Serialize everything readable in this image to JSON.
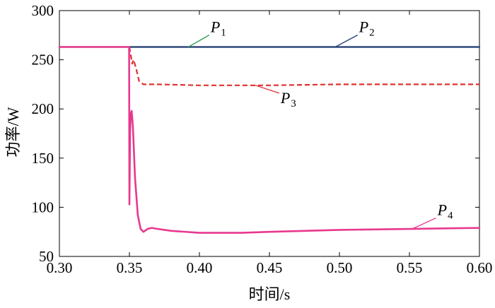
{
  "chart_data": {
    "type": "line",
    "title": "",
    "xlabel": "时间/s",
    "ylabel": "功率/W",
    "xlim": [
      0.3,
      0.6
    ],
    "ylim": [
      50,
      300
    ],
    "xticks": [
      "0.30",
      "0.35",
      "0.40",
      "0.45",
      "0.50",
      "0.55",
      "0.60"
    ],
    "yticks": [
      "50",
      "100",
      "150",
      "200",
      "250",
      "300"
    ],
    "grid": false,
    "legend": "inline annotations",
    "series": [
      {
        "name": "P1",
        "letter": "P",
        "subscript": "1",
        "color": "#2e9a4a",
        "dash": "solid",
        "x": [
          0.3,
          0.35,
          0.4,
          0.45,
          0.5,
          0.55,
          0.6
        ],
        "y": [
          263,
          263,
          263,
          263,
          263,
          263,
          263
        ]
      },
      {
        "name": "P2",
        "letter": "P",
        "subscript": "2",
        "color": "#2a3f7a",
        "dash": "solid",
        "x": [
          0.35,
          0.4,
          0.45,
          0.5,
          0.55,
          0.6
        ],
        "y": [
          263,
          263,
          263,
          263,
          263,
          263
        ]
      },
      {
        "name": "P3",
        "letter": "P",
        "subscript": "3",
        "color": "#e03030",
        "dash": "dashed",
        "x": [
          0.35,
          0.352,
          0.353,
          0.355,
          0.357,
          0.36,
          0.37,
          0.4,
          0.45,
          0.5,
          0.55,
          0.6
        ],
        "y": [
          263,
          246,
          250,
          240,
          228,
          225,
          225,
          224,
          224,
          225,
          225,
          225
        ]
      },
      {
        "name": "P4",
        "letter": "P",
        "subscript": "4",
        "color": "#e8388e",
        "dash": "solid",
        "x": [
          0.3,
          0.3498,
          0.35,
          0.3505,
          0.351,
          0.3516,
          0.3525,
          0.354,
          0.356,
          0.358,
          0.36,
          0.363,
          0.366,
          0.37,
          0.38,
          0.4,
          0.43,
          0.45,
          0.5,
          0.55,
          0.6
        ],
        "y": [
          263,
          263,
          103,
          178,
          195,
          198,
          182,
          130,
          92,
          78,
          75,
          78,
          79,
          78,
          76,
          74,
          74,
          75,
          77,
          78,
          79
        ]
      }
    ],
    "annotations": [
      {
        "series": "P1",
        "x": 0.392,
        "y": 263,
        "label_x": 0.408,
        "label_y": 278
      },
      {
        "series": "P2",
        "x": 0.497,
        "y": 263,
        "label_x": 0.514,
        "label_y": 278
      },
      {
        "series": "P3",
        "x": 0.44,
        "y": 224,
        "label_x": 0.458,
        "label_y": 206
      },
      {
        "series": "P4",
        "x": 0.552,
        "y": 78,
        "label_x": 0.57,
        "label_y": 92
      }
    ]
  }
}
